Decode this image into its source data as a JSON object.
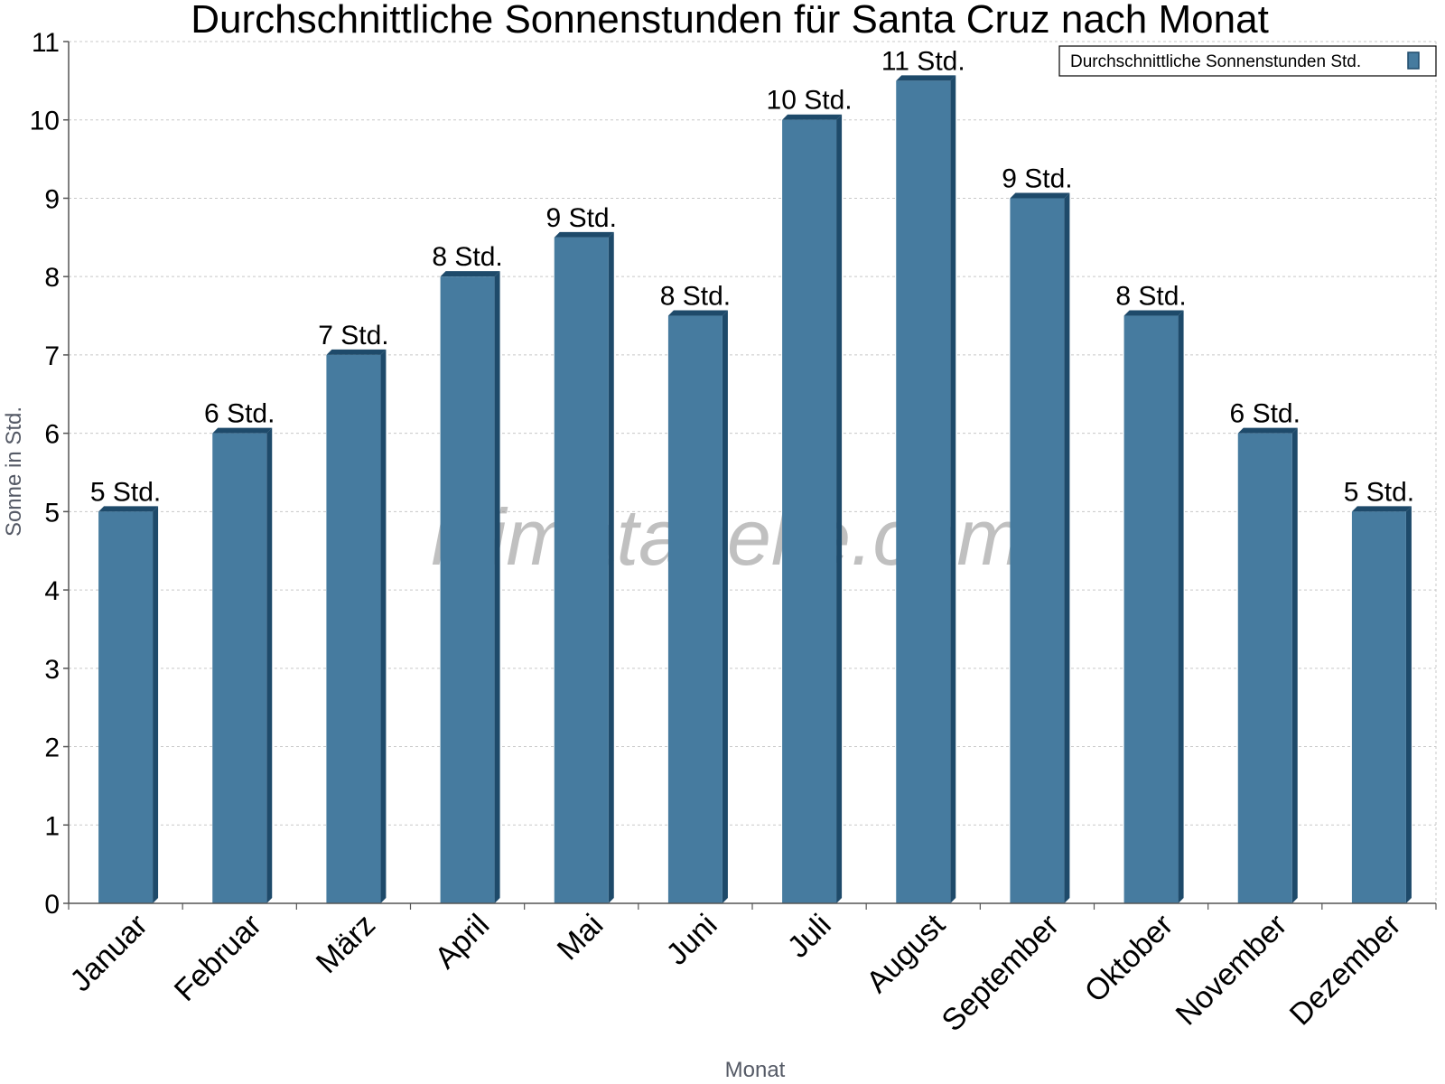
{
  "chart_data": {
    "type": "bar",
    "title": "Durchschnittliche Sonnenstunden für Santa Cruz nach Monat",
    "xlabel": "Monat",
    "ylabel": "Sonne in Std.",
    "ylim": [
      0,
      11
    ],
    "yticks": [
      0,
      1,
      2,
      3,
      4,
      5,
      6,
      7,
      8,
      9,
      10,
      11
    ],
    "grid": true,
    "legend_position": "top-right",
    "categories": [
      "Januar",
      "Februar",
      "März",
      "April",
      "Mai",
      "Juni",
      "Juli",
      "August",
      "September",
      "Oktober",
      "November",
      "Dezember"
    ],
    "series": [
      {
        "name": "Durchschnittliche Sonnenstunden Std.",
        "values": [
          5,
          6,
          7,
          8,
          8.5,
          7.5,
          10,
          10.5,
          9,
          7.5,
          6,
          5
        ],
        "labels": [
          "5 Std.",
          "6 Std.",
          "7 Std.",
          "8 Std.",
          "9 Std.",
          "8 Std.",
          "10 Std.",
          "11 Std.",
          "9 Std.",
          "8 Std.",
          "6 Std.",
          "5 Std."
        ]
      }
    ],
    "colors": {
      "bar_face": "#467b9f",
      "bar_side": "#1e4a6a",
      "grid": "#c8c8c8",
      "axis": "#555555"
    }
  },
  "watermark": "klimatabelle.com"
}
